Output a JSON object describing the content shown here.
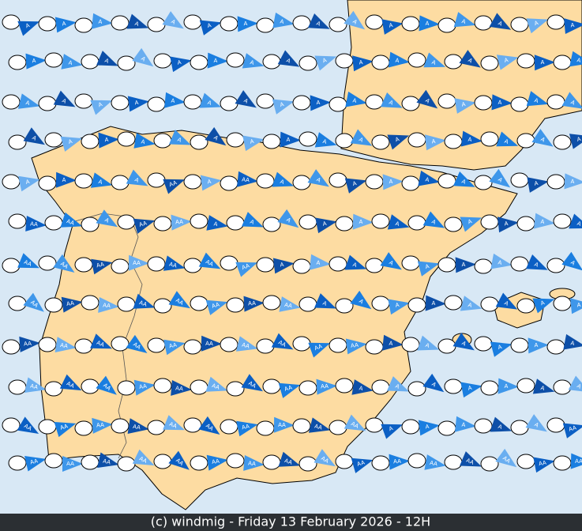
{
  "footer": "(c) windmig - Friday 13 February 2026 - 12H",
  "wind_rows": [
    [
      "A",
      "A",
      "A",
      "A",
      "A",
      "A",
      "A",
      "A",
      "A",
      "A",
      "A",
      "A",
      "A",
      "A",
      "A",
      "A"
    ],
    [
      "A",
      "A",
      "A",
      "A",
      "A",
      "A",
      "A",
      "A",
      "A",
      "A",
      "A",
      "A",
      "A",
      "A",
      "A",
      "A"
    ],
    [
      "A",
      "A",
      "A",
      "A",
      "A",
      "A",
      "A",
      "A",
      "A",
      "A",
      "A",
      "A",
      "A",
      "A",
      "A",
      "A"
    ],
    [
      "A",
      "A",
      "A",
      "A",
      "A",
      "A",
      "A",
      "A",
      "A",
      "A",
      "A",
      "A",
      "A",
      "A",
      "A",
      "A"
    ],
    [
      "A",
      "A",
      "A",
      "A",
      "AA",
      "A",
      "AA",
      "A",
      "A",
      "A",
      "A",
      "A",
      "A",
      "A",
      "A",
      "A"
    ],
    [
      "AA",
      "AA",
      "A",
      "AA",
      "AA",
      "A",
      "A",
      "A",
      "A",
      "A",
      "A",
      "A",
      "A",
      "A",
      "A",
      "A"
    ],
    [
      "AA",
      "AA",
      "AA",
      "AA",
      "AA",
      "AA",
      "AA",
      "A",
      "A",
      "A",
      "A",
      "A",
      "A",
      "A",
      "A",
      "A"
    ],
    [
      "AA",
      "AA",
      "AA",
      "AA",
      "AA",
      "AA",
      "AA",
      "AA",
      "A",
      "A",
      "A",
      "A",
      "A",
      "A",
      "A",
      "A"
    ],
    [
      "AA",
      "AA",
      "AA",
      "AA",
      "AA",
      "AA",
      "AA",
      "AA",
      "AA",
      "AA",
      "A",
      "A",
      "A",
      "A",
      "A",
      "A"
    ],
    [
      "AA",
      "AA",
      "AA",
      "AA",
      "AA",
      "AA",
      "AA",
      "AA",
      "AA",
      "A",
      "A",
      "A",
      "A",
      "A",
      "A",
      "A"
    ],
    [
      "AA",
      "AA",
      "AA",
      "AA",
      "AA",
      "AA",
      "AA",
      "AA",
      "AA",
      "AA",
      "A",
      "A",
      "A",
      "A",
      "A",
      "AA"
    ],
    [
      "AA",
      "AA",
      "AA",
      "AA",
      "AA",
      "AA",
      "AA",
      "AA",
      "AA",
      "AA",
      "AA",
      "AA",
      "AA",
      "AA",
      "AA",
      "AA"
    ]
  ]
}
